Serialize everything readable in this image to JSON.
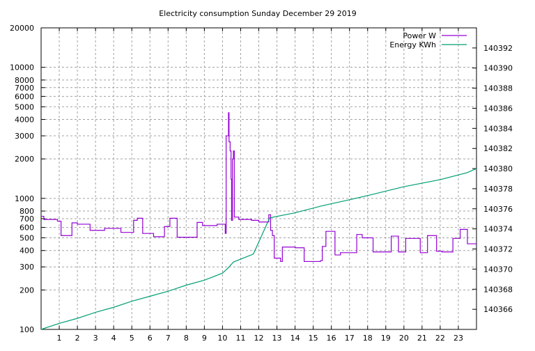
{
  "chart_data": {
    "type": "line",
    "title": "Electricity consumption Sunday December 29 2019",
    "xlabel": "",
    "ylabel": "",
    "xlim": [
      0,
      24
    ],
    "x_ticks": [
      1,
      2,
      3,
      4,
      5,
      6,
      7,
      8,
      9,
      10,
      11,
      12,
      13,
      14,
      15,
      16,
      17,
      18,
      19,
      20,
      21,
      22,
      23
    ],
    "y_left": {
      "scale": "log",
      "lim": [
        100,
        20000
      ],
      "ticks": [
        100,
        200,
        300,
        400,
        500,
        600,
        700,
        800,
        1000,
        2000,
        3000,
        4000,
        5000,
        6000,
        7000,
        8000,
        10000,
        20000
      ]
    },
    "y_right": {
      "scale": "linear",
      "lim": [
        140364,
        140394
      ],
      "ticks": [
        140366,
        140368,
        140370,
        140372,
        140374,
        140376,
        140378,
        140380,
        140382,
        140384,
        140386,
        140388,
        140390,
        140392
      ]
    },
    "grid": true,
    "legend_position": "top-right",
    "series": [
      {
        "name": "Power W",
        "axis": "left",
        "color": "#9400d3",
        "style": "steps",
        "points": [
          [
            0,
            730
          ],
          [
            0.15,
            690
          ],
          [
            0.9,
            670
          ],
          [
            1.1,
            520
          ],
          [
            1.7,
            650
          ],
          [
            2.0,
            635
          ],
          [
            2.7,
            570
          ],
          [
            3.5,
            590
          ],
          [
            4.4,
            550
          ],
          [
            5.1,
            680
          ],
          [
            5.3,
            705
          ],
          [
            5.6,
            540
          ],
          [
            6.2,
            510
          ],
          [
            6.8,
            610
          ],
          [
            7.1,
            705
          ],
          [
            7.5,
            505
          ],
          [
            8.6,
            655
          ],
          [
            8.9,
            620
          ],
          [
            9.7,
            635
          ],
          [
            10.15,
            540
          ],
          [
            10.2,
            3000
          ],
          [
            10.33,
            4500
          ],
          [
            10.36,
            2700
          ],
          [
            10.42,
            2300
          ],
          [
            10.47,
            1400
          ],
          [
            10.5,
            680
          ],
          [
            10.55,
            2000
          ],
          [
            10.6,
            2300
          ],
          [
            10.65,
            720
          ],
          [
            10.9,
            690
          ],
          [
            11.6,
            680
          ],
          [
            12.0,
            660
          ],
          [
            12.55,
            750
          ],
          [
            12.65,
            570
          ],
          [
            12.75,
            520
          ],
          [
            12.85,
            350
          ],
          [
            13.2,
            330
          ],
          [
            13.3,
            425
          ],
          [
            14.0,
            420
          ],
          [
            14.5,
            330
          ],
          [
            15.4,
            335
          ],
          [
            15.5,
            430
          ],
          [
            15.7,
            560
          ],
          [
            16.2,
            370
          ],
          [
            16.5,
            385
          ],
          [
            17.4,
            530
          ],
          [
            17.7,
            500
          ],
          [
            18.3,
            390
          ],
          [
            19.3,
            515
          ],
          [
            19.7,
            390
          ],
          [
            20.1,
            495
          ],
          [
            20.9,
            385
          ],
          [
            21.3,
            520
          ],
          [
            21.8,
            395
          ],
          [
            22.1,
            390
          ],
          [
            22.7,
            495
          ],
          [
            23.1,
            580
          ],
          [
            23.5,
            450
          ],
          [
            24,
            450
          ]
        ]
      },
      {
        "name": "Energy KWh",
        "axis": "right",
        "color": "#009e73",
        "style": "line",
        "points": [
          [
            0,
            140364.0
          ],
          [
            1,
            140364.6
          ],
          [
            2,
            140365.1
          ],
          [
            3,
            140365.7
          ],
          [
            4,
            140366.2
          ],
          [
            5,
            140366.8
          ],
          [
            6,
            140367.3
          ],
          [
            7,
            140367.8
          ],
          [
            8,
            140368.4
          ],
          [
            9,
            140368.9
          ],
          [
            10,
            140369.6
          ],
          [
            10.3,
            140370.1
          ],
          [
            10.6,
            140370.7
          ],
          [
            11.7,
            140371.5
          ],
          [
            12.6,
            140375.1
          ],
          [
            14,
            140375.6
          ],
          [
            15.5,
            140376.3
          ],
          [
            17,
            140376.9
          ],
          [
            18.2,
            140377.4
          ],
          [
            20,
            140378.2
          ],
          [
            22,
            140378.9
          ],
          [
            23.5,
            140379.6
          ],
          [
            24,
            140380.0
          ]
        ]
      }
    ]
  }
}
